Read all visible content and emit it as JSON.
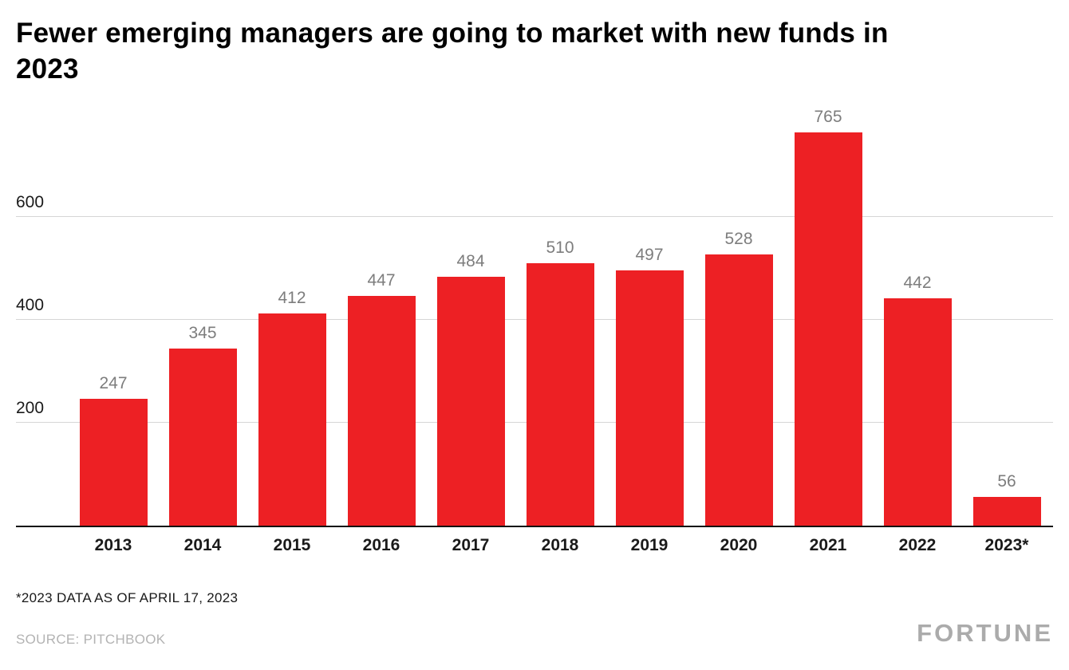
{
  "chart_data": {
    "type": "bar",
    "title": "Fewer emerging managers are going to market with new funds in 2023",
    "categories": [
      "2013",
      "2014",
      "2015",
      "2016",
      "2017",
      "2018",
      "2019",
      "2020",
      "2021",
      "2022",
      "2023*"
    ],
    "values": [
      247,
      345,
      412,
      447,
      484,
      510,
      497,
      528,
      765,
      442,
      56
    ],
    "xlabel": "",
    "ylabel": "",
    "yticks": [
      200,
      400,
      600
    ],
    "ylim": [
      0,
      800
    ],
    "grid": true,
    "legend": false,
    "bar_color": "#ed2024",
    "value_label_color": "#7d7d7d"
  },
  "notes": {
    "footnote": "*2023 DATA AS OF APRIL 17, 2023",
    "source": "SOURCE: PITCHBOOK"
  },
  "branding": {
    "logo": "FORTUNE"
  }
}
